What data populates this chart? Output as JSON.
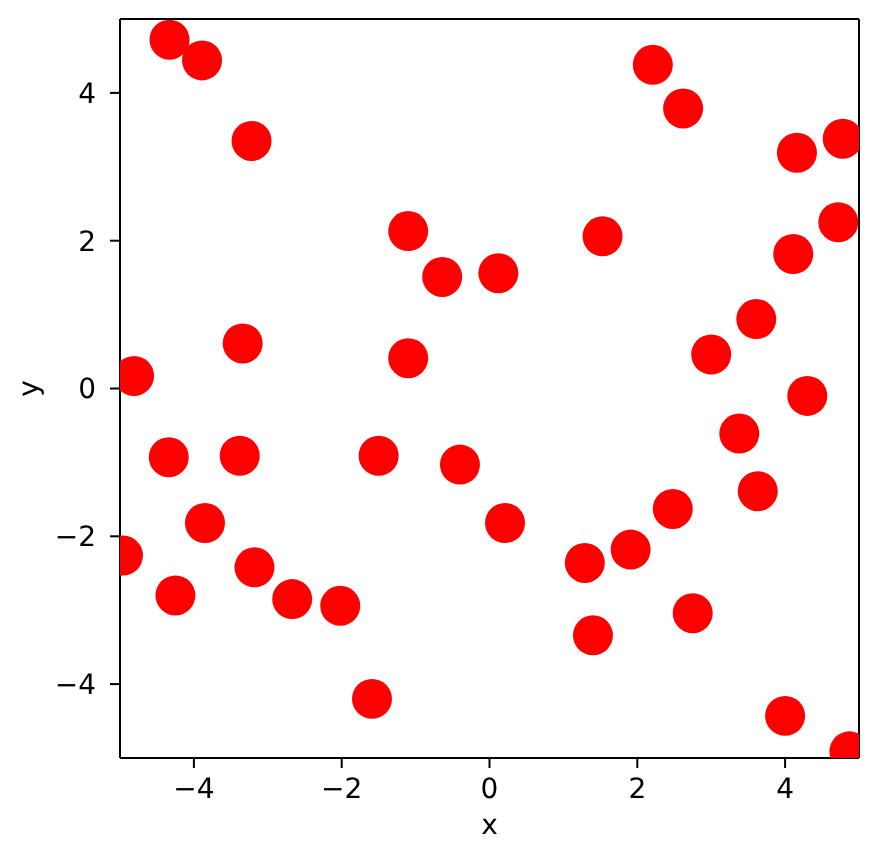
{
  "chart_data": {
    "type": "scatter",
    "xlabel": "x",
    "ylabel": "y",
    "x": [
      -4.33,
      -3.89,
      -3.22,
      -1.1,
      -0.64,
      -4.81,
      -3.34,
      -1.1,
      2.21,
      2.62,
      4.16,
      4.78,
      4.72,
      4.11,
      1.53,
      0.12,
      3.61,
      3.0,
      4.3,
      -4.34,
      -3.38,
      -1.5,
      -0.4,
      -3.85,
      -4.96,
      -3.18,
      -4.25,
      -2.67,
      -2.02,
      -1.59,
      0.21,
      1.29,
      1.91,
      2.48,
      1.4,
      2.75,
      3.38,
      3.63,
      4.0,
      4.87
    ],
    "values": [
      4.72,
      4.44,
      3.35,
      2.13,
      1.51,
      0.17,
      0.61,
      0.41,
      4.38,
      3.79,
      3.19,
      3.38,
      2.25,
      1.82,
      2.06,
      1.56,
      0.94,
      0.46,
      -0.1,
      -0.93,
      -0.91,
      -0.91,
      -1.03,
      -1.82,
      -2.26,
      -2.42,
      -2.8,
      -2.85,
      -2.94,
      -4.2,
      -1.82,
      -2.36,
      -2.18,
      -1.63,
      -3.34,
      -3.04,
      -0.61,
      -1.39,
      -4.43,
      -4.91
    ],
    "color": "#ff0000",
    "marker": "circle",
    "xlim": [
      -5,
      5
    ],
    "ylim": [
      -5,
      5
    ],
    "xticks": [
      -4,
      -2,
      0,
      2,
      4
    ],
    "yticks": [
      -4,
      -2,
      0,
      2,
      4
    ]
  }
}
